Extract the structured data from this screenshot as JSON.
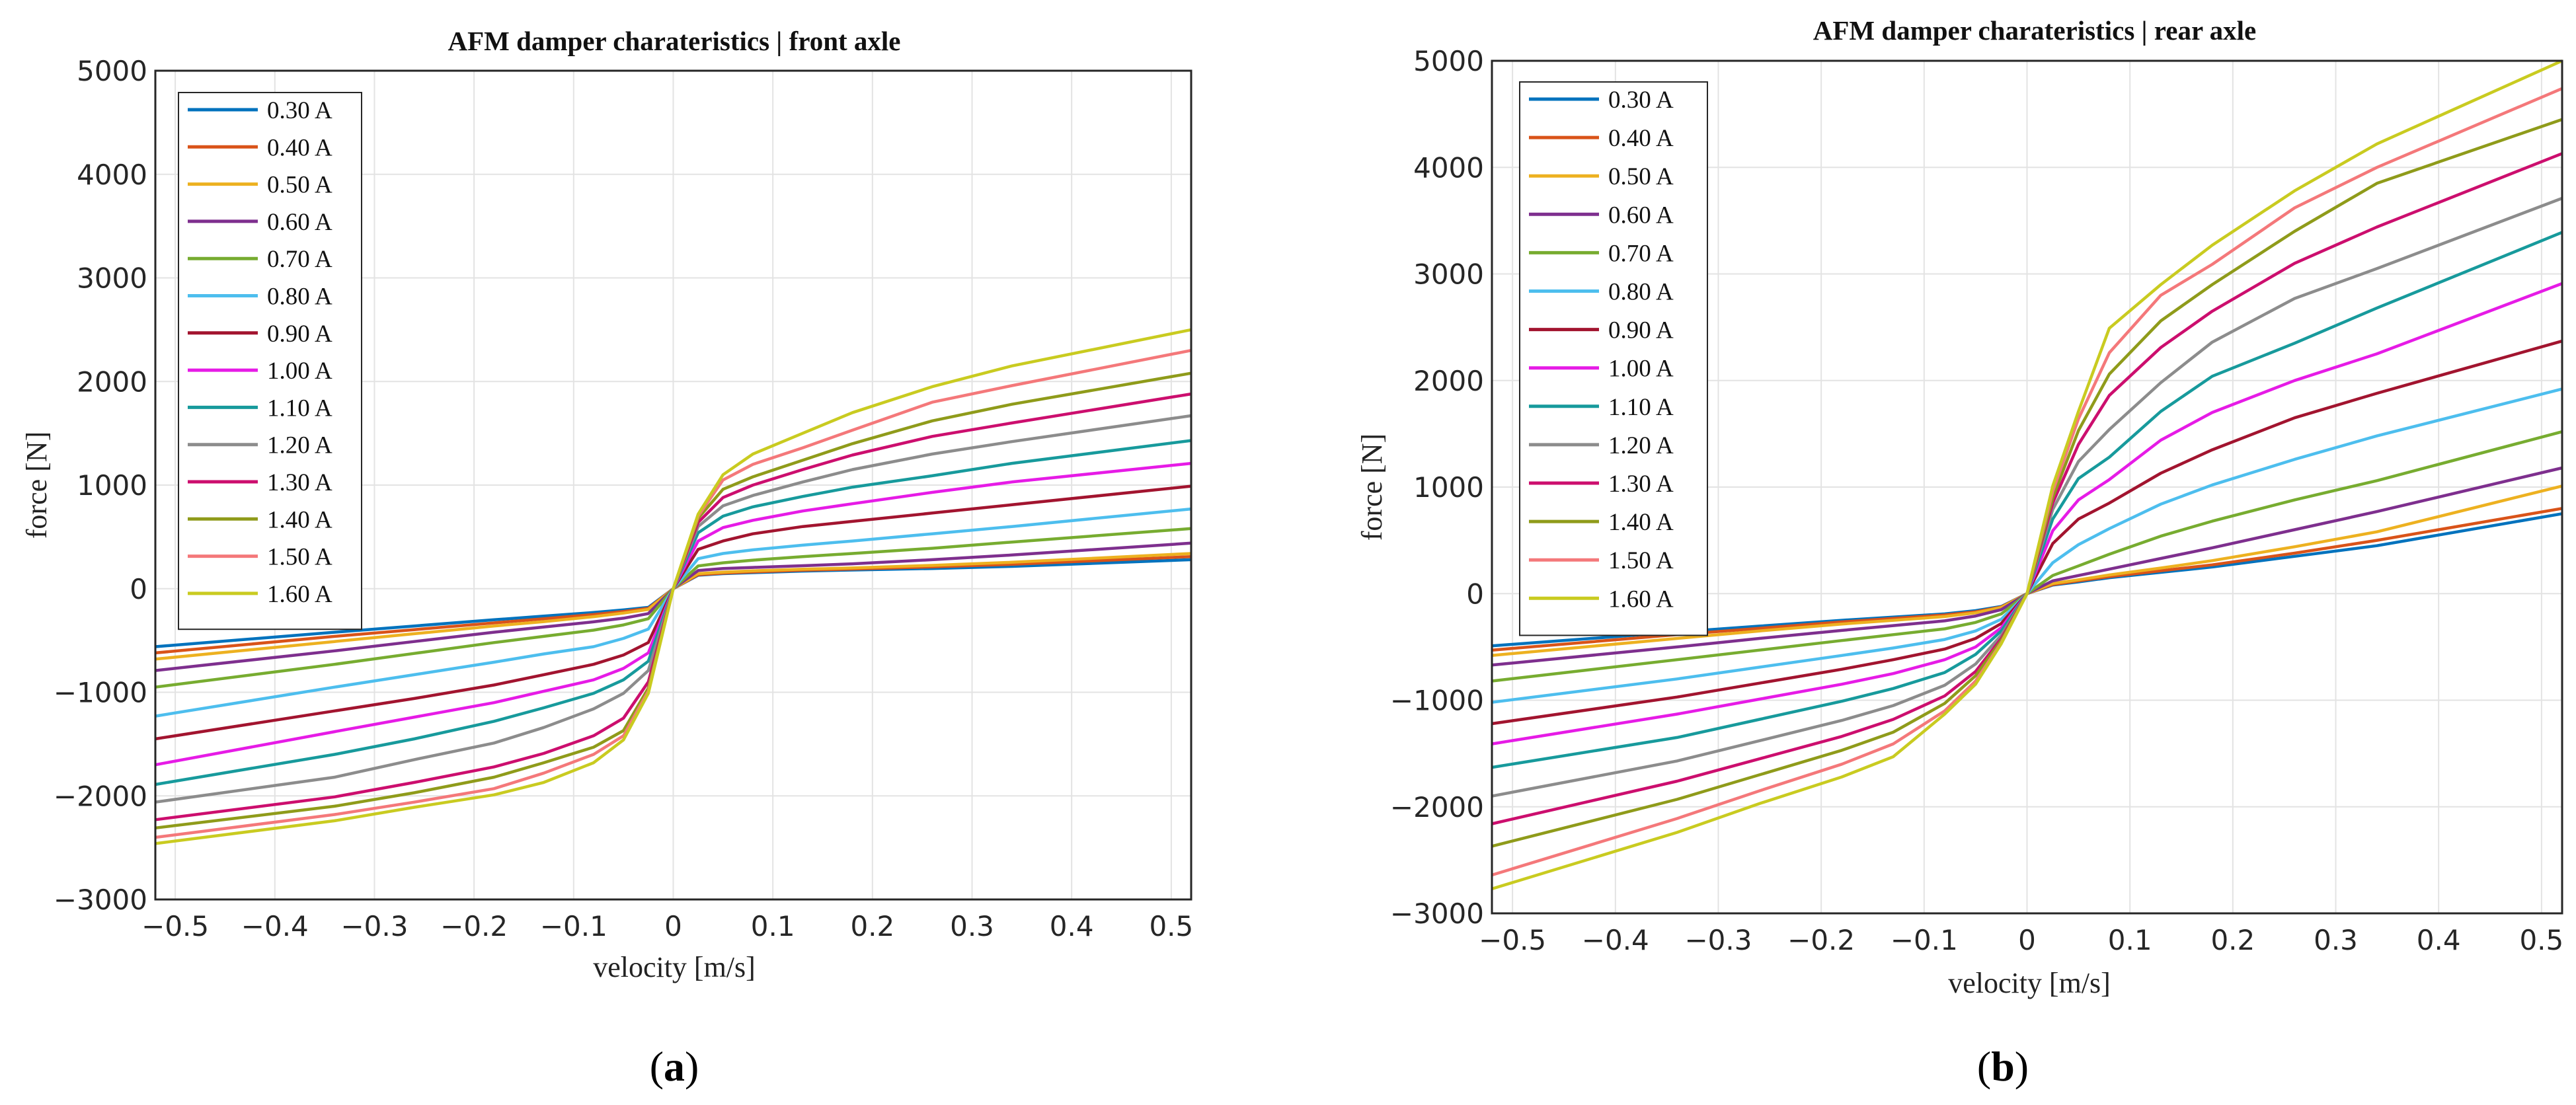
{
  "chart_data": [
    {
      "type": "line",
      "panel_label": "a",
      "title": "AFM damper charateristics  |  front axle",
      "xlabel": "velocity [m/s]",
      "ylabel": "force [N]",
      "xlim": [
        -0.52,
        0.52
      ],
      "ylim": [
        -3000,
        5000
      ],
      "xticks": [
        -0.5,
        -0.4,
        -0.3,
        -0.2,
        -0.1,
        0,
        0.1,
        0.2,
        0.3,
        0.4,
        0.5
      ],
      "xtick_labels": [
        "−0.5",
        "−0.4",
        "−0.3",
        "−0.2",
        "−0.1",
        "0",
        "0.1",
        "0.2",
        "0.3",
        "0.4",
        "0.5"
      ],
      "yticks": [
        -3000,
        -2000,
        -1000,
        0,
        1000,
        2000,
        3000,
        4000,
        5000
      ],
      "ytick_labels": [
        "−3000",
        "−2000",
        "−1000",
        "0",
        "1000",
        "2000",
        "3000",
        "4000",
        "5000"
      ],
      "grid": true,
      "legend_position": "top-left",
      "x": [
        -0.52,
        -0.34,
        -0.26,
        -0.18,
        -0.13,
        -0.08,
        -0.05,
        -0.025,
        0,
        0.025,
        0.05,
        0.08,
        0.13,
        0.18,
        0.26,
        0.34,
        0.52
      ],
      "series": [
        {
          "name": "0.30 A",
          "values": [
            -560,
            -420,
            -360,
            -300,
            -265,
            -230,
            -205,
            -180,
            0,
            130,
            145,
            155,
            170,
            180,
            195,
            215,
            280
          ]
        },
        {
          "name": "0.40 A",
          "values": [
            -620,
            -460,
            -395,
            -330,
            -290,
            -250,
            -220,
            -190,
            0,
            135,
            150,
            162,
            178,
            190,
            210,
            235,
            310
          ]
        },
        {
          "name": "0.50 A",
          "values": [
            -680,
            -510,
            -435,
            -360,
            -318,
            -270,
            -235,
            -200,
            0,
            145,
            160,
            172,
            188,
            200,
            225,
            255,
            340
          ]
        },
        {
          "name": "0.60 A",
          "values": [
            -790,
            -600,
            -510,
            -420,
            -370,
            -320,
            -285,
            -240,
            0,
            175,
            195,
            205,
            222,
            240,
            280,
            325,
            440
          ]
        },
        {
          "name": "0.70 A",
          "values": [
            -950,
            -730,
            -625,
            -520,
            -460,
            -400,
            -350,
            -290,
            0,
            220,
            250,
            275,
            310,
            340,
            390,
            450,
            580
          ]
        },
        {
          "name": "0.80 A",
          "values": [
            -1230,
            -950,
            -830,
            -710,
            -630,
            -560,
            -480,
            -390,
            0,
            290,
            340,
            375,
            420,
            460,
            530,
            600,
            770
          ]
        },
        {
          "name": "0.90 A",
          "values": [
            -1450,
            -1180,
            -1060,
            -930,
            -830,
            -730,
            -640,
            -520,
            0,
            380,
            460,
            530,
            600,
            650,
            730,
            810,
            990
          ]
        },
        {
          "name": "1.00 A",
          "values": [
            -1700,
            -1380,
            -1240,
            -1100,
            -990,
            -880,
            -770,
            -620,
            0,
            460,
            590,
            660,
            750,
            820,
            930,
            1030,
            1210
          ]
        },
        {
          "name": "1.10 A",
          "values": [
            -1890,
            -1600,
            -1450,
            -1280,
            -1150,
            -1010,
            -880,
            -700,
            0,
            540,
            700,
            790,
            890,
            980,
            1090,
            1210,
            1430
          ]
        },
        {
          "name": "1.20 A",
          "values": [
            -2060,
            -1820,
            -1650,
            -1490,
            -1340,
            -1160,
            -1010,
            -790,
            0,
            600,
            800,
            900,
            1030,
            1150,
            1300,
            1420,
            1670
          ]
        },
        {
          "name": "1.30 A",
          "values": [
            -2230,
            -2010,
            -1870,
            -1720,
            -1590,
            -1420,
            -1250,
            -900,
            0,
            640,
            880,
            1000,
            1150,
            1290,
            1470,
            1600,
            1880
          ]
        },
        {
          "name": "1.40 A",
          "values": [
            -2310,
            -2100,
            -1970,
            -1820,
            -1680,
            -1530,
            -1370,
            -960,
            0,
            680,
            960,
            1080,
            1240,
            1400,
            1620,
            1780,
            2080
          ]
        },
        {
          "name": "1.50 A",
          "values": [
            -2400,
            -2180,
            -2060,
            -1930,
            -1780,
            -1600,
            -1420,
            -990,
            0,
            700,
            1050,
            1200,
            1360,
            1530,
            1800,
            1960,
            2300
          ]
        },
        {
          "name": "1.60 A",
          "values": [
            -2460,
            -2240,
            -2110,
            -1990,
            -1870,
            -1680,
            -1460,
            -1010,
            0,
            720,
            1100,
            1300,
            1500,
            1700,
            1950,
            2150,
            2500
          ]
        }
      ]
    },
    {
      "type": "line",
      "panel_label": "b",
      "title": "AFM damper charateristics  |  rear axle",
      "xlabel": "velocity [m/s]",
      "ylabel": "force [N]",
      "xlim": [
        -0.52,
        0.52
      ],
      "ylim": [
        -3000,
        5000
      ],
      "xticks": [
        -0.5,
        -0.4,
        -0.3,
        -0.2,
        -0.1,
        0,
        0.1,
        0.2,
        0.3,
        0.4,
        0.5
      ],
      "xtick_labels": [
        "−0.5",
        "−0.4",
        "−0.3",
        "−0.2",
        "−0.1",
        "0",
        "0.1",
        "0.2",
        "0.3",
        "0.4",
        "0.5"
      ],
      "yticks": [
        -3000,
        -2000,
        -1000,
        0,
        1000,
        2000,
        3000,
        4000,
        5000
      ],
      "ytick_labels": [
        "−3000",
        "−2000",
        "−1000",
        "0",
        "1000",
        "2000",
        "3000",
        "4000",
        "5000"
      ],
      "grid": true,
      "legend_position": "top-left",
      "x": [
        -0.52,
        -0.34,
        -0.26,
        -0.18,
        -0.13,
        -0.08,
        -0.05,
        -0.025,
        0,
        0.025,
        0.05,
        0.08,
        0.13,
        0.18,
        0.26,
        0.34,
        0.52
      ],
      "series": [
        {
          "name": "0.30 A",
          "values": [
            -490,
            -360,
            -305,
            -250,
            -220,
            -190,
            -160,
            -120,
            0,
            80,
            110,
            150,
            200,
            250,
            350,
            450,
            750
          ]
        },
        {
          "name": "0.40 A",
          "values": [
            -530,
            -385,
            -325,
            -265,
            -232,
            -200,
            -170,
            -125,
            0,
            85,
            120,
            160,
            215,
            270,
            380,
            500,
            800
          ]
        },
        {
          "name": "0.50 A",
          "values": [
            -580,
            -420,
            -350,
            -285,
            -250,
            -215,
            -180,
            -130,
            0,
            95,
            130,
            175,
            240,
            310,
            440,
            580,
            1010
          ]
        },
        {
          "name": "0.60 A",
          "values": [
            -670,
            -500,
            -420,
            -345,
            -300,
            -255,
            -210,
            -150,
            0,
            120,
            170,
            230,
            330,
            430,
            600,
            770,
            1180
          ]
        },
        {
          "name": "0.70 A",
          "values": [
            -820,
            -620,
            -530,
            -440,
            -385,
            -330,
            -270,
            -190,
            0,
            170,
            260,
            370,
            540,
            680,
            880,
            1060,
            1520
          ]
        },
        {
          "name": "0.80 A",
          "values": [
            -1020,
            -800,
            -690,
            -580,
            -510,
            -430,
            -350,
            -240,
            0,
            290,
            460,
            610,
            840,
            1020,
            1260,
            1480,
            1920
          ]
        },
        {
          "name": "0.90 A",
          "values": [
            -1220,
            -970,
            -840,
            -710,
            -620,
            -520,
            -420,
            -280,
            0,
            470,
            700,
            850,
            1130,
            1350,
            1650,
            1880,
            2370
          ]
        },
        {
          "name": "1.00 A",
          "values": [
            -1410,
            -1130,
            -990,
            -850,
            -750,
            -620,
            -500,
            -320,
            0,
            590,
            880,
            1070,
            1440,
            1700,
            2000,
            2250,
            2910
          ]
        },
        {
          "name": "1.10 A",
          "values": [
            -1630,
            -1350,
            -1180,
            -1010,
            -890,
            -740,
            -570,
            -350,
            0,
            700,
            1080,
            1280,
            1710,
            2040,
            2350,
            2680,
            3390
          ]
        },
        {
          "name": "1.20 A",
          "values": [
            -1900,
            -1570,
            -1380,
            -1190,
            -1050,
            -860,
            -660,
            -390,
            0,
            790,
            1240,
            1540,
            1980,
            2360,
            2770,
            3050,
            3710
          ]
        },
        {
          "name": "1.30 A",
          "values": [
            -2160,
            -1760,
            -1550,
            -1340,
            -1180,
            -960,
            -730,
            -420,
            0,
            850,
            1400,
            1860,
            2310,
            2650,
            3100,
            3440,
            4130
          ]
        },
        {
          "name": "1.40 A",
          "values": [
            -2370,
            -1930,
            -1700,
            -1470,
            -1300,
            -1030,
            -770,
            -440,
            0,
            900,
            1530,
            2060,
            2560,
            2900,
            3400,
            3850,
            4450
          ]
        },
        {
          "name": "1.50 A",
          "values": [
            -2640,
            -2110,
            -1850,
            -1600,
            -1410,
            -1100,
            -820,
            -460,
            0,
            960,
            1640,
            2260,
            2800,
            3090,
            3620,
            4000,
            4740
          ]
        },
        {
          "name": "1.60 A",
          "values": [
            -2770,
            -2240,
            -1970,
            -1720,
            -1530,
            -1130,
            -850,
            -470,
            0,
            1010,
            1710,
            2490,
            2900,
            3270,
            3780,
            4220,
            5000
          ]
        }
      ]
    }
  ],
  "colors": [
    "#0072BD",
    "#D95319",
    "#EDB120",
    "#7E2F8E",
    "#77AC30",
    "#4DBEEE",
    "#A2142F",
    "#E61BE6",
    "#179A9C",
    "#8C8C8C",
    "#CC0E6E",
    "#8F9B1A",
    "#F4787A",
    "#C9CB20"
  ]
}
